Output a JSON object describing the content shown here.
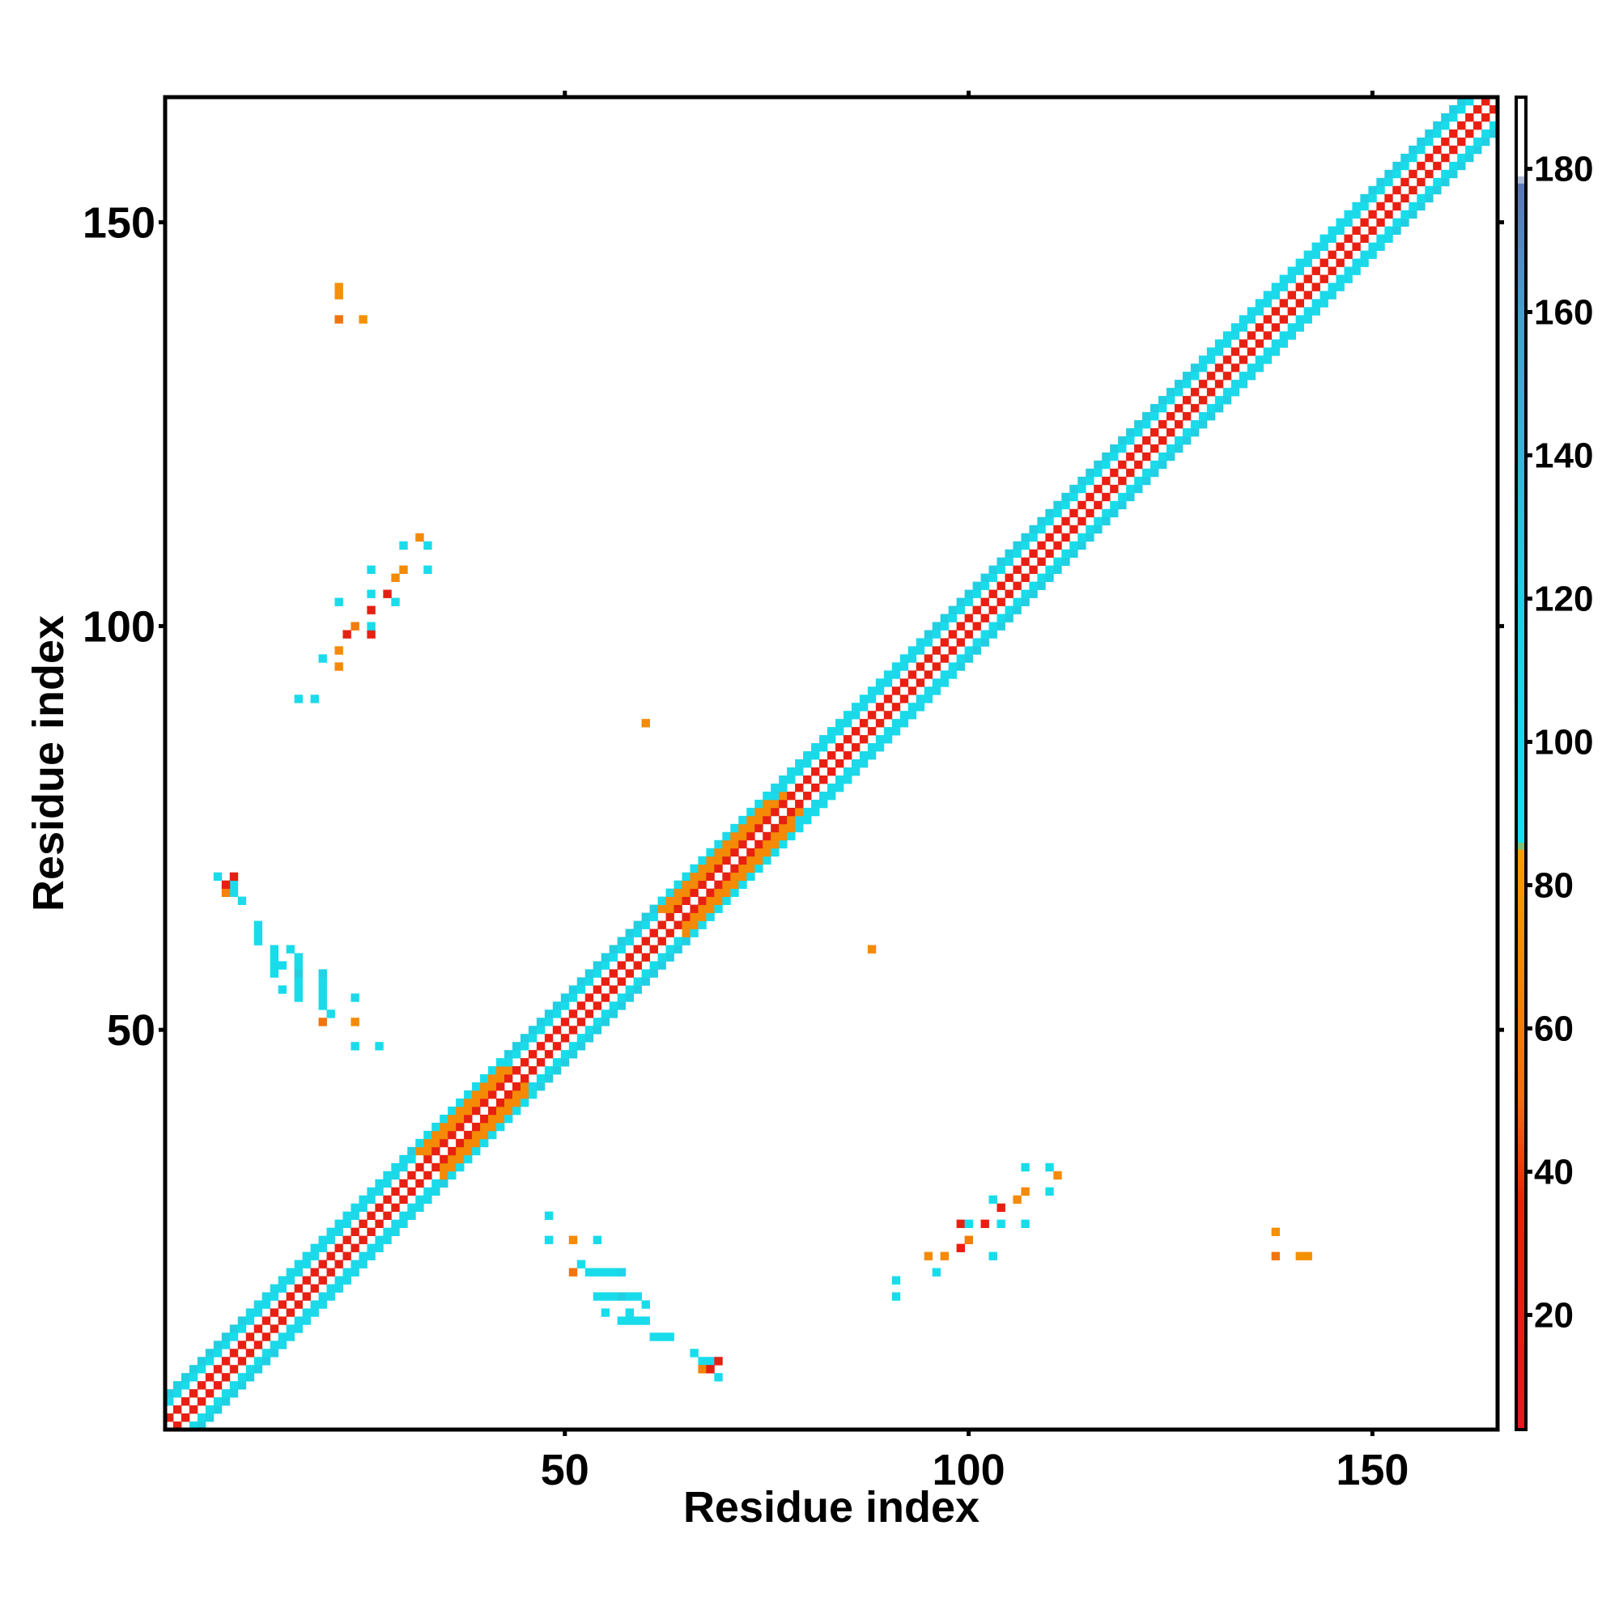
{
  "chart_data": {
    "type": "heatmap",
    "title": "",
    "xlabel": "Residue index",
    "ylabel": "Residue index",
    "xlim": [
      1,
      165
    ],
    "ylim": [
      1,
      165
    ],
    "x_ticks": [
      50,
      100,
      150
    ],
    "y_ticks": [
      50,
      100,
      150
    ],
    "colorbar": {
      "range": [
        4,
        190
      ],
      "ticks": [
        20,
        40,
        60,
        80,
        100,
        120,
        140,
        160,
        180
      ],
      "stops": [
        {
          "value": 4,
          "color": "#e41a1c"
        },
        {
          "value": 36,
          "color": "#e8230c"
        },
        {
          "value": 50,
          "color": "#f26d0f"
        },
        {
          "value": 85,
          "color": "#f5a000"
        },
        {
          "value": 86,
          "color": "#16e0ee"
        },
        {
          "value": 120,
          "color": "#22cfe2"
        },
        {
          "value": 160,
          "color": "#4a9dcc"
        },
        {
          "value": 178,
          "color": "#5b78b8"
        },
        {
          "value": 179,
          "color": "#ffffff"
        },
        {
          "value": 190,
          "color": "#ffffff"
        }
      ]
    },
    "diagonal_band": {
      "residue_start": 1,
      "residue_end": 165,
      "half_width": 4,
      "pattern_values": {
        "0": 185,
        "1": 25,
        "2": 65,
        "3": 95,
        "4": 120
      },
      "cyan_widening_segments": [
        [
          13,
          32
        ],
        [
          78,
          96
        ],
        [
          131,
          150
        ]
      ],
      "orange_segments": [
        [
          34,
          44
        ],
        [
          64,
          78
        ]
      ]
    },
    "off_diagonal_contacts": [
      {
        "x": 48,
        "y": 27,
        "v": 95
      },
      {
        "x": 48,
        "y": 24,
        "v": 95
      },
      {
        "x": 51,
        "y": 24,
        "v": 70
      },
      {
        "x": 51,
        "y": 20,
        "v": 55
      },
      {
        "x": 54,
        "y": 20,
        "v": 95
      },
      {
        "x": 54,
        "y": 24,
        "v": 100
      },
      {
        "x": 52,
        "y": 21,
        "v": 95
      },
      {
        "x": 53,
        "y": 20,
        "v": 95
      },
      {
        "x": 55,
        "y": 20,
        "v": 95
      },
      {
        "x": 56,
        "y": 20,
        "v": 95
      },
      {
        "x": 57,
        "y": 20,
        "v": 110
      },
      {
        "x": 54,
        "y": 17,
        "v": 95
      },
      {
        "x": 55,
        "y": 17,
        "v": 95
      },
      {
        "x": 56,
        "y": 17,
        "v": 95
      },
      {
        "x": 57,
        "y": 17,
        "v": 120
      },
      {
        "x": 58,
        "y": 17,
        "v": 95
      },
      {
        "x": 59,
        "y": 17,
        "v": 95
      },
      {
        "x": 60,
        "y": 16,
        "v": 95
      },
      {
        "x": 55,
        "y": 15,
        "v": 95
      },
      {
        "x": 57,
        "y": 14,
        "v": 95
      },
      {
        "x": 58,
        "y": 14,
        "v": 95
      },
      {
        "x": 59,
        "y": 14,
        "v": 95
      },
      {
        "x": 60,
        "y": 14,
        "v": 95
      },
      {
        "x": 58,
        "y": 15,
        "v": 95
      },
      {
        "x": 61,
        "y": 12,
        "v": 95
      },
      {
        "x": 62,
        "y": 12,
        "v": 95
      },
      {
        "x": 63,
        "y": 12,
        "v": 95
      },
      {
        "x": 66,
        "y": 10,
        "v": 95
      },
      {
        "x": 67,
        "y": 9,
        "v": 95
      },
      {
        "x": 68,
        "y": 9,
        "v": 95
      },
      {
        "x": 69,
        "y": 9,
        "v": 20
      },
      {
        "x": 67,
        "y": 8,
        "v": 65
      },
      {
        "x": 68,
        "y": 8,
        "v": 20
      },
      {
        "x": 69,
        "y": 7,
        "v": 95
      },
      {
        "x": 27,
        "y": 48,
        "v": 95
      },
      {
        "x": 24,
        "y": 48,
        "v": 95
      },
      {
        "x": 24,
        "y": 51,
        "v": 70
      },
      {
        "x": 20,
        "y": 51,
        "v": 55
      },
      {
        "x": 20,
        "y": 54,
        "v": 95
      },
      {
        "x": 24,
        "y": 54,
        "v": 100
      },
      {
        "x": 21,
        "y": 52,
        "v": 95
      },
      {
        "x": 20,
        "y": 53,
        "v": 95
      },
      {
        "x": 20,
        "y": 55,
        "v": 95
      },
      {
        "x": 20,
        "y": 56,
        "v": 95
      },
      {
        "x": 20,
        "y": 57,
        "v": 110
      },
      {
        "x": 17,
        "y": 54,
        "v": 95
      },
      {
        "x": 17,
        "y": 55,
        "v": 95
      },
      {
        "x": 17,
        "y": 56,
        "v": 95
      },
      {
        "x": 17,
        "y": 57,
        "v": 120
      },
      {
        "x": 17,
        "y": 58,
        "v": 95
      },
      {
        "x": 17,
        "y": 59,
        "v": 95
      },
      {
        "x": 16,
        "y": 60,
        "v": 95
      },
      {
        "x": 15,
        "y": 55,
        "v": 95
      },
      {
        "x": 14,
        "y": 57,
        "v": 95
      },
      {
        "x": 14,
        "y": 58,
        "v": 95
      },
      {
        "x": 14,
        "y": 59,
        "v": 95
      },
      {
        "x": 14,
        "y": 60,
        "v": 95
      },
      {
        "x": 15,
        "y": 58,
        "v": 95
      },
      {
        "x": 12,
        "y": 61,
        "v": 95
      },
      {
        "x": 12,
        "y": 62,
        "v": 95
      },
      {
        "x": 12,
        "y": 63,
        "v": 95
      },
      {
        "x": 10,
        "y": 66,
        "v": 95
      },
      {
        "x": 9,
        "y": 67,
        "v": 95
      },
      {
        "x": 9,
        "y": 68,
        "v": 95
      },
      {
        "x": 9,
        "y": 69,
        "v": 20
      },
      {
        "x": 8,
        "y": 67,
        "v": 65
      },
      {
        "x": 8,
        "y": 68,
        "v": 20
      },
      {
        "x": 7,
        "y": 69,
        "v": 95
      },
      {
        "x": 91,
        "y": 19,
        "v": 95
      },
      {
        "x": 91,
        "y": 17,
        "v": 95
      },
      {
        "x": 95,
        "y": 22,
        "v": 70
      },
      {
        "x": 96,
        "y": 20,
        "v": 95
      },
      {
        "x": 97,
        "y": 22,
        "v": 70
      },
      {
        "x": 99,
        "y": 26,
        "v": 25
      },
      {
        "x": 100,
        "y": 26,
        "v": 95
      },
      {
        "x": 100,
        "y": 24,
        "v": 60
      },
      {
        "x": 99,
        "y": 23,
        "v": 25
      },
      {
        "x": 102,
        "y": 26,
        "v": 20
      },
      {
        "x": 103,
        "y": 29,
        "v": 95
      },
      {
        "x": 104,
        "y": 28,
        "v": 20
      },
      {
        "x": 104,
        "y": 26,
        "v": 95
      },
      {
        "x": 103,
        "y": 22,
        "v": 95
      },
      {
        "x": 106,
        "y": 29,
        "v": 70
      },
      {
        "x": 107,
        "y": 33,
        "v": 95
      },
      {
        "x": 107,
        "y": 30,
        "v": 70
      },
      {
        "x": 107,
        "y": 26,
        "v": 95
      },
      {
        "x": 110,
        "y": 33,
        "v": 95
      },
      {
        "x": 111,
        "y": 32,
        "v": 70
      },
      {
        "x": 110,
        "y": 30,
        "v": 95
      },
      {
        "x": 19,
        "y": 91,
        "v": 95
      },
      {
        "x": 17,
        "y": 91,
        "v": 95
      },
      {
        "x": 22,
        "y": 95,
        "v": 70
      },
      {
        "x": 20,
        "y": 96,
        "v": 95
      },
      {
        "x": 22,
        "y": 97,
        "v": 70
      },
      {
        "x": 26,
        "y": 99,
        "v": 25
      },
      {
        "x": 26,
        "y": 100,
        "v": 95
      },
      {
        "x": 24,
        "y": 100,
        "v": 60
      },
      {
        "x": 23,
        "y": 99,
        "v": 25
      },
      {
        "x": 26,
        "y": 102,
        "v": 20
      },
      {
        "x": 29,
        "y": 103,
        "v": 95
      },
      {
        "x": 28,
        "y": 104,
        "v": 20
      },
      {
        "x": 26,
        "y": 104,
        "v": 95
      },
      {
        "x": 22,
        "y": 103,
        "v": 95
      },
      {
        "x": 29,
        "y": 106,
        "v": 70
      },
      {
        "x": 33,
        "y": 107,
        "v": 95
      },
      {
        "x": 30,
        "y": 107,
        "v": 70
      },
      {
        "x": 26,
        "y": 107,
        "v": 95
      },
      {
        "x": 33,
        "y": 110,
        "v": 95
      },
      {
        "x": 32,
        "y": 111,
        "v": 70
      },
      {
        "x": 30,
        "y": 110,
        "v": 95
      },
      {
        "x": 138,
        "y": 25,
        "v": 75
      },
      {
        "x": 138,
        "y": 22,
        "v": 55
      },
      {
        "x": 141,
        "y": 22,
        "v": 75
      },
      {
        "x": 142,
        "y": 22,
        "v": 75
      },
      {
        "x": 25,
        "y": 138,
        "v": 75
      },
      {
        "x": 22,
        "y": 138,
        "v": 55
      },
      {
        "x": 22,
        "y": 141,
        "v": 75
      },
      {
        "x": 22,
        "y": 142,
        "v": 75
      },
      {
        "x": 88,
        "y": 60,
        "v": 70
      },
      {
        "x": 60,
        "y": 88,
        "v": 70
      }
    ]
  }
}
